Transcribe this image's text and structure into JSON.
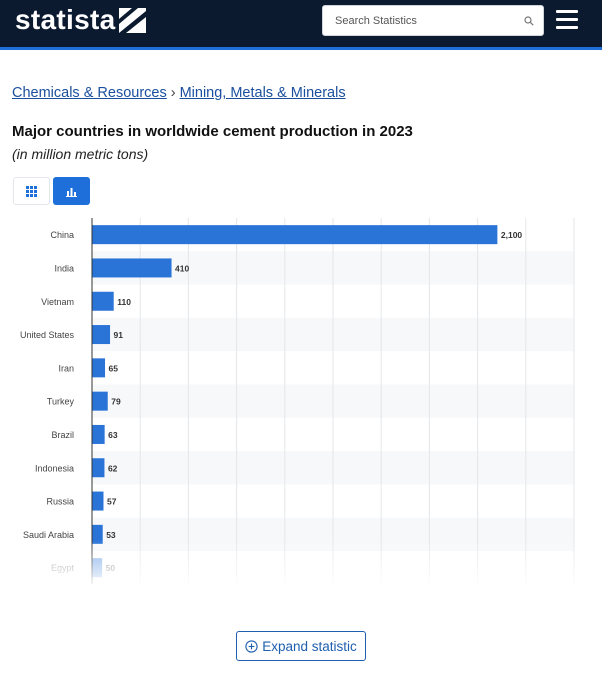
{
  "header": {
    "logo_text": "statista",
    "search_placeholder": "Search Statistics"
  },
  "breadcrumb": {
    "items": [
      "Chemicals & Resources",
      "Mining, Metals & Minerals"
    ],
    "separator": "›"
  },
  "title": "Major countries in worldwide cement production in 2023",
  "subtitle": "(in million metric tons)",
  "view_toggle": {
    "table_icon": "grid-icon",
    "chart_icon": "bar-chart-icon",
    "active": "chart"
  },
  "colors": {
    "header_bg": "#0b1a2f",
    "accent": "#1e6fd9",
    "bar": "#2a74d8",
    "link": "#1a4f9e"
  },
  "chart_data": {
    "type": "bar",
    "orientation": "horizontal",
    "categories": [
      "China",
      "India",
      "Vietnam",
      "United States",
      "Iran",
      "Turkey",
      "Brazil",
      "Indonesia",
      "Russia",
      "Saudi Arabia",
      "Egypt"
    ],
    "values": [
      2100,
      410,
      110,
      91,
      65,
      79,
      63,
      62,
      57,
      53,
      50
    ],
    "value_labels": [
      "2,100",
      "410",
      "110",
      "91",
      "65",
      "79",
      "63",
      "62",
      "57",
      "53",
      "50"
    ],
    "xlim": [
      0,
      2500
    ],
    "grid": true,
    "legend": "none"
  },
  "expand_button": {
    "label": "Expand statistic",
    "icon": "plus-circle-icon"
  }
}
